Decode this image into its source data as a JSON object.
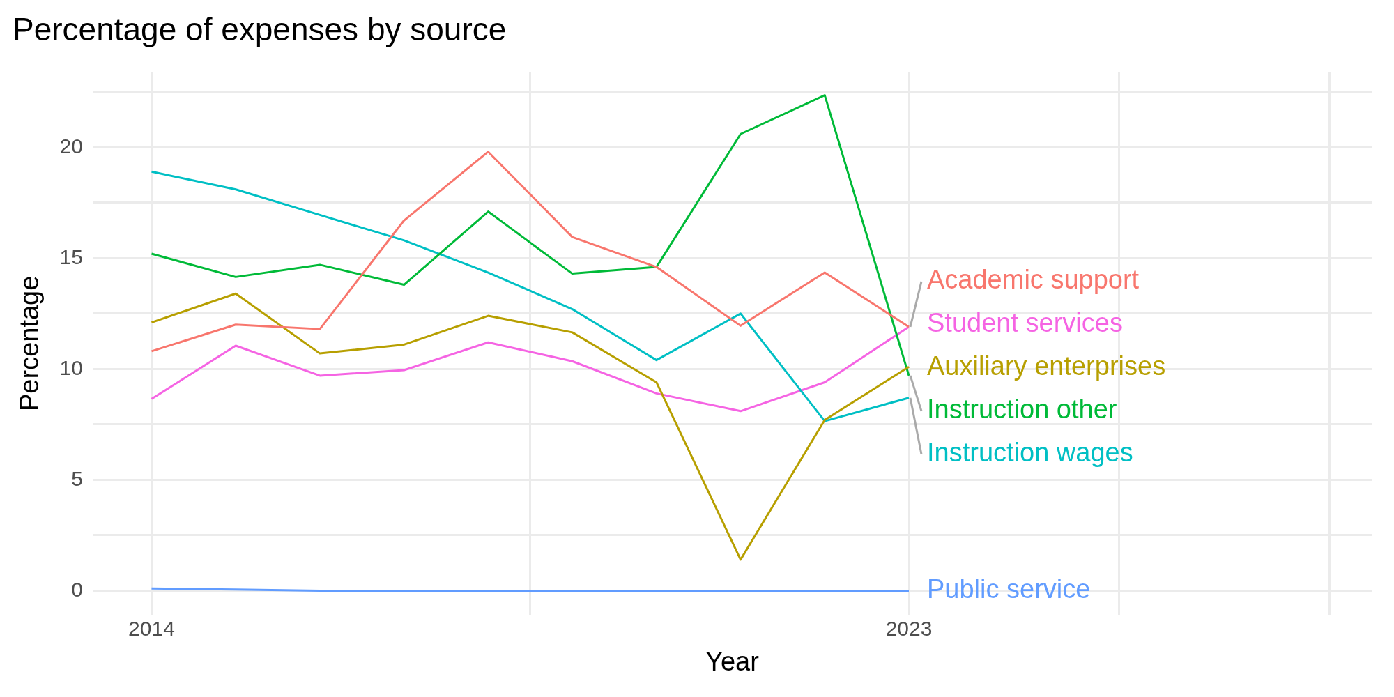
{
  "chart_data": {
    "type": "line",
    "title": "Percentage of expenses by source",
    "xlabel": "Year",
    "ylabel": "Percentage",
    "x": [
      2014,
      2015,
      2016,
      2017,
      2018,
      2019,
      2020,
      2021,
      2022,
      2023
    ],
    "series": [
      {
        "name": "Academic support",
        "color": "#f8766d",
        "values": [
          10.8,
          12.0,
          11.8,
          16.7,
          19.8,
          15.95,
          14.6,
          11.95,
          14.35,
          11.9
        ]
      },
      {
        "name": "Auxiliary enterprises",
        "color": "#b79f00",
        "values": [
          12.1,
          13.4,
          10.7,
          11.1,
          12.4,
          11.65,
          9.4,
          1.4,
          7.7,
          10.1
        ]
      },
      {
        "name": "Instruction other",
        "color": "#00ba38",
        "values": [
          15.2,
          14.15,
          14.7,
          13.8,
          17.1,
          14.3,
          14.6,
          20.6,
          22.35,
          9.7
        ]
      },
      {
        "name": "Instruction wages",
        "color": "#00bfc4",
        "values": [
          18.9,
          18.1,
          16.95,
          15.8,
          14.35,
          12.7,
          10.4,
          12.5,
          7.65,
          8.7
        ]
      },
      {
        "name": "Public service",
        "color": "#619cff",
        "values": [
          0.1,
          0.05,
          0,
          0,
          0,
          0,
          0,
          0,
          0,
          0
        ]
      },
      {
        "name": "Student services",
        "color": "#f564e3",
        "values": [
          8.65,
          11.05,
          9.7,
          9.95,
          11.2,
          10.35,
          8.9,
          8.1,
          9.4,
          11.9
        ]
      }
    ],
    "xlim": [
      2013.3,
      2028.5
    ],
    "xticks": [
      2014,
      {
        "value": 2018.5,
        "label": null
      },
      2023,
      {
        "value": 2025.5,
        "label": null
      },
      {
        "value": 2028,
        "label": null
      }
    ],
    "ylim": [
      -1.1,
      23.4
    ],
    "yticks": [
      0,
      {
        "value": 2.5,
        "label": null
      },
      5,
      {
        "value": 7.5,
        "label": null
      },
      10,
      {
        "value": 12.5,
        "label": null
      },
      15,
      {
        "value": 17.5,
        "label": null
      },
      20,
      {
        "value": 22.5,
        "label": null
      }
    ],
    "grid": true,
    "legend": false,
    "marker": "none",
    "line_style": "solid"
  }
}
